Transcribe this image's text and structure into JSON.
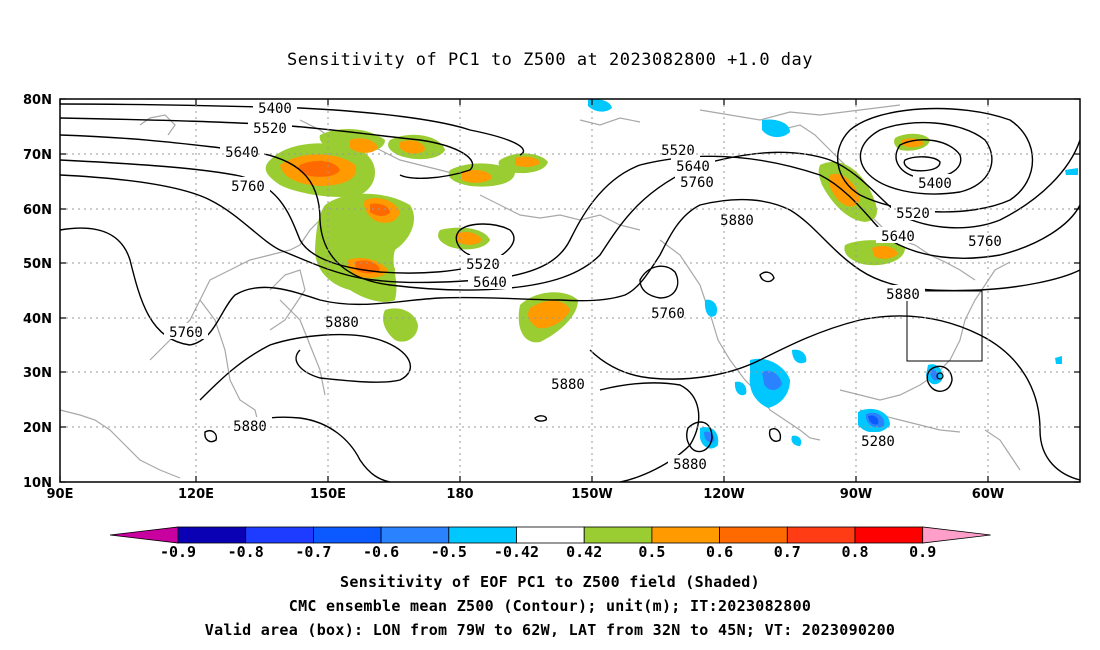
{
  "title": "Sensitivity of PC1 to Z500 at 2023082800 +1.0 day",
  "lat_labels": [
    "80N",
    "70N",
    "60N",
    "50N",
    "40N",
    "30N",
    "20N",
    "10N"
  ],
  "lon_labels": [
    "90E",
    "120E",
    "150E",
    "180",
    "150W",
    "120W",
    "90W",
    "60W"
  ],
  "colorbar": {
    "labels": [
      "-0.9",
      "-0.8",
      "-0.7",
      "-0.6",
      "-0.5",
      "-0.42",
      "0.42",
      "0.5",
      "0.6",
      "0.7",
      "0.8",
      "0.9"
    ],
    "colors": [
      "#c8009f",
      "#0a00b4",
      "#1e3cff",
      "#0a5aff",
      "#2a82ff",
      "#00c8ff",
      "#ffffff",
      "#9acd32",
      "#ff9a00",
      "#ff6a00",
      "#ff3c14",
      "#ff0000",
      "#ff9ec8"
    ]
  },
  "contour_labels": [
    {
      "text": "5400"
    },
    {
      "text": "5520"
    },
    {
      "text": "5640"
    },
    {
      "text": "5760"
    },
    {
      "text": "5760"
    },
    {
      "text": "5880"
    },
    {
      "text": "5880"
    },
    {
      "text": "5520"
    },
    {
      "text": "5640"
    },
    {
      "text": "5520"
    },
    {
      "text": "5640"
    },
    {
      "text": "5760"
    },
    {
      "text": "5880"
    },
    {
      "text": "5760"
    },
    {
      "text": "5880"
    },
    {
      "text": "5880"
    },
    {
      "text": "5280"
    },
    {
      "text": "5400"
    },
    {
      "text": "5520"
    },
    {
      "text": "5640"
    },
    {
      "text": "5760"
    },
    {
      "text": "5880"
    }
  ],
  "footer": {
    "line1": "Sensitivity of EOF PC1 to Z500 field (Shaded)",
    "line2": "CMC ensemble mean Z500 (Contour); unit(m); IT:2023082800",
    "line3": "Valid area (box): LON from 79W to 62W, LAT from 32N to 45N; VT: 2023090200"
  }
}
